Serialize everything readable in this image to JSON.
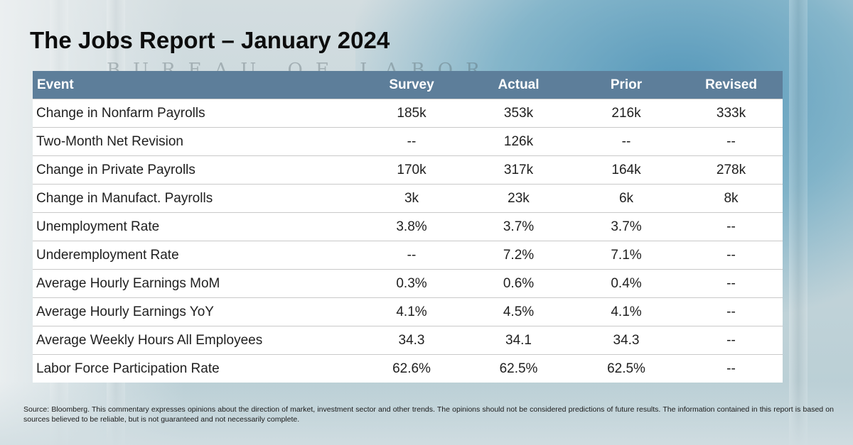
{
  "title": "The Jobs Report – January 2024",
  "background_text": "BUREAU OF LABOR STATISTICS",
  "table": {
    "headers": [
      "Event",
      "Survey",
      "Actual",
      "Prior",
      "Revised"
    ],
    "rows": [
      [
        "Change in Nonfarm Payrolls",
        "185k",
        "353k",
        "216k",
        "333k"
      ],
      [
        "Two-Month Net Revision",
        "--",
        "126k",
        "--",
        "--"
      ],
      [
        "Change in Private Payrolls",
        "170k",
        "317k",
        "164k",
        "278k"
      ],
      [
        "Change in Manufact. Payrolls",
        "3k",
        "23k",
        "6k",
        "8k"
      ],
      [
        "Unemployment Rate",
        "3.8%",
        "3.7%",
        "3.7%",
        "--"
      ],
      [
        "Underemployment Rate",
        "--",
        "7.2%",
        "7.1%",
        "--"
      ],
      [
        "Average Hourly Earnings MoM",
        "0.3%",
        "0.6%",
        "0.4%",
        "--"
      ],
      [
        "Average Hourly Earnings YoY",
        "4.1%",
        "4.5%",
        "4.1%",
        "--"
      ],
      [
        "Average Weekly Hours All Employees",
        "34.3",
        "34.1",
        "34.3",
        "--"
      ],
      [
        "Labor Force Participation Rate",
        "62.6%",
        "62.5%",
        "62.5%",
        "--"
      ]
    ]
  },
  "footnote": "Source: Bloomberg. This commentary expresses opinions about the direction of market, investment sector and other trends. The opinions should not be considered predictions of future results. The information contained in this report is based on sources believed to be reliable, but is not guaranteed and not necessarily complete.",
  "colors": {
    "header_bg": "#5d7e9a",
    "header_text": "#ffffff",
    "row_border": "#c9c9c9",
    "title_text": "#0d0d0d"
  }
}
